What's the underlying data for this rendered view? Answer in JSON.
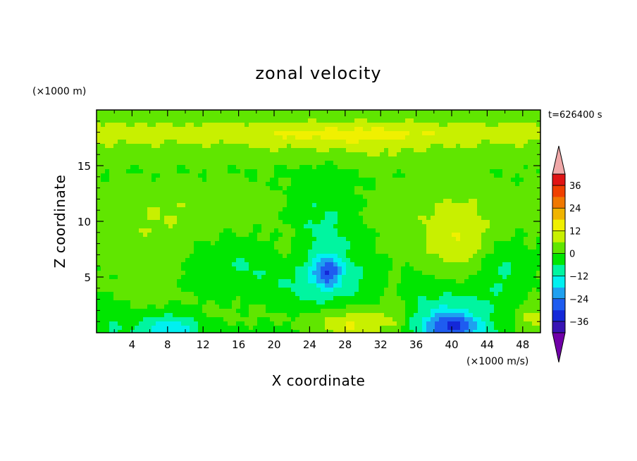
{
  "chart_data": {
    "type": "heatmap",
    "title": "zonal velocity",
    "xlabel": "X coordinate",
    "ylabel": "Z coordinate",
    "x_units": "(×1000 m/s)",
    "y_units": "(×1000 m)",
    "time_label": "t=626400 s",
    "xlim": [
      0,
      50
    ],
    "ylim": [
      0,
      20
    ],
    "x_ticks": [
      4,
      8,
      12,
      16,
      20,
      24,
      28,
      32,
      36,
      40,
      44,
      48
    ],
    "y_ticks": [
      5,
      10,
      15
    ],
    "colorbar": {
      "levels": [
        -42,
        -36,
        -30,
        -24,
        -18,
        -12,
        -6,
        0,
        6,
        12,
        18,
        24,
        30,
        36,
        42
      ],
      "tick_values": [
        -36,
        -24,
        -12,
        0,
        12,
        24,
        36
      ],
      "tick_labels": [
        "−36",
        "−24",
        "−12",
        "0",
        "12",
        "24",
        "36"
      ],
      "colors": [
        "#7000a8",
        "#3814b4",
        "#1428d8",
        "#1e5cf0",
        "#1ea0f0",
        "#00f0f0",
        "#00f5a0",
        "#00e600",
        "#60e600",
        "#c8f000",
        "#f0f000",
        "#f0b400",
        "#f07800",
        "#f04000",
        "#e01414",
        "#f0a8a8"
      ],
      "extend": "both"
    },
    "field_features": [
      {
        "x": 29,
        "z": 0.8,
        "value": 14
      },
      {
        "x": 40,
        "z": 0.8,
        "value": -28
      },
      {
        "x": 8,
        "z": 0.8,
        "value": -20
      },
      {
        "x": 40.5,
        "z": 8,
        "value": 10
      },
      {
        "x": 22,
        "z": 7.5,
        "value": 6
      },
      {
        "x": 26,
        "z": 5.5,
        "value": -20
      },
      {
        "x": 25,
        "z": 9,
        "value": -10
      },
      {
        "x": 7,
        "z": 8,
        "value": 5
      },
      {
        "x": 28,
        "z": 17.5,
        "value": 8
      },
      {
        "x": 10,
        "z": 12,
        "value": 2
      },
      {
        "x": 49,
        "z": 1,
        "value": 6
      }
    ]
  }
}
